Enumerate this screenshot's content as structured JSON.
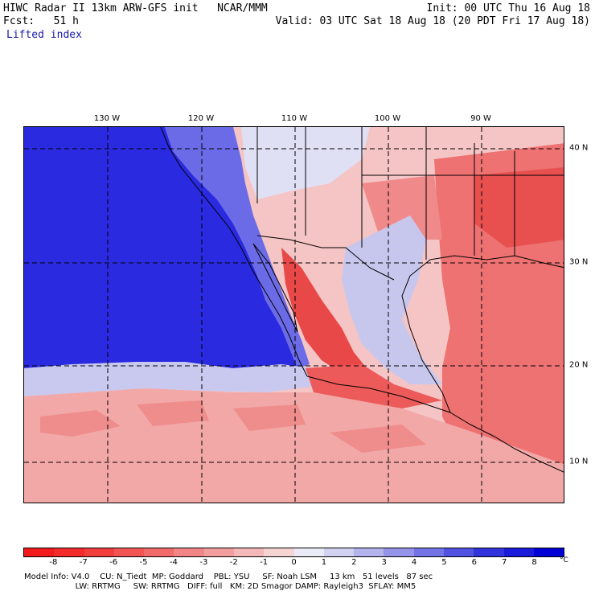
{
  "header": {
    "line1_left": "HIWC Radar II 13km ARW-GFS init   NCAR/MMM",
    "line1_right": "Init: 00 UTC Thu 16 Aug 18",
    "line2_left": "Fcst:   51 h",
    "line2_right": "Valid: 03 UTC Sat 18 Aug 18 (20 PDT Fri 17 Aug 18)",
    "field": "Lifted index"
  },
  "map": {
    "lon_labels": [
      "130 W",
      "120 W",
      "110 W",
      "100 W",
      "90 W"
    ],
    "lat_labels": [
      "40 N",
      "30 N",
      "20 N",
      "10 N"
    ]
  },
  "colorbar": {
    "ticks": [
      "-8",
      "-7",
      "-6",
      "-5",
      "-4",
      "-3",
      "-2",
      "-1",
      "0",
      "1",
      "2",
      "3",
      "4",
      "5",
      "6",
      "7",
      "8"
    ],
    "unit": "°C",
    "colors": [
      "#f21a1a",
      "#f22a2a",
      "#f23d3d",
      "#f25454",
      "#f26b6b",
      "#f28585",
      "#f29e9e",
      "#f5b8b8",
      "#f7d4d4",
      "#ebebf7",
      "#d1d1f2",
      "#b3b3ee",
      "#9494ea",
      "#7373e6",
      "#5252e2",
      "#3333de",
      "#1a1ada",
      "#0000d6"
    ]
  },
  "footer": {
    "line1": "Model Info: V4.0    CU: N_Tiedt  MP: Goddard    PBL: YSU     SF: Noah LSM     13 km   51 levels   87 sec",
    "line2": "                    LW: RRTMG     SW: RRTMG   DIFF: full   KM: 2D Smagor DAMP: Rayleigh3  SFLAY: MM5"
  }
}
